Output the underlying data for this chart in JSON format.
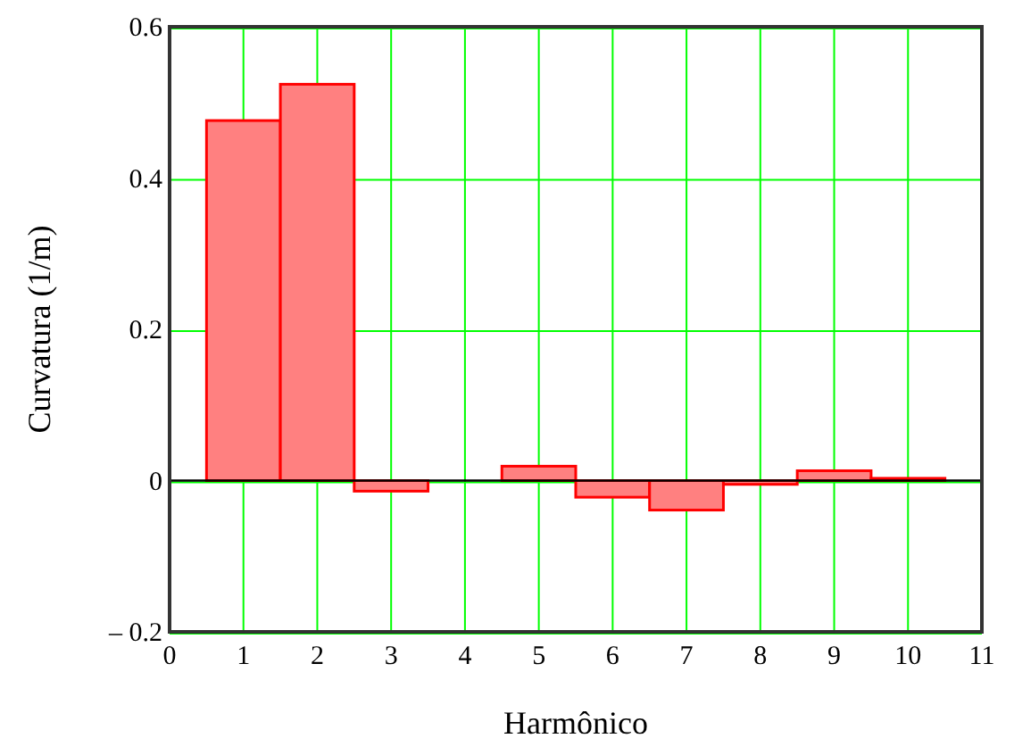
{
  "chart_data": {
    "type": "bar",
    "xlabel": "Harmônico",
    "ylabel": "Curvatura (1/m)",
    "x": [
      1,
      2,
      3,
      4,
      5,
      6,
      7,
      8,
      9,
      10
    ],
    "values": [
      0.476,
      0.524,
      -0.014,
      0,
      0.019,
      -0.022,
      -0.039,
      -0.005,
      0.013,
      0.003
    ],
    "color": "#ff8080",
    "xlim": [
      0,
      11
    ],
    "xticks": [
      0,
      1,
      2,
      3,
      4,
      5,
      6,
      7,
      8,
      9,
      10,
      11
    ],
    "ylim": [
      -0.2,
      0.6
    ],
    "yticks": [
      {
        "value": -0.2,
        "label": "– 0.2"
      },
      0,
      0.2,
      0.4,
      0.6
    ],
    "grid": true
  }
}
